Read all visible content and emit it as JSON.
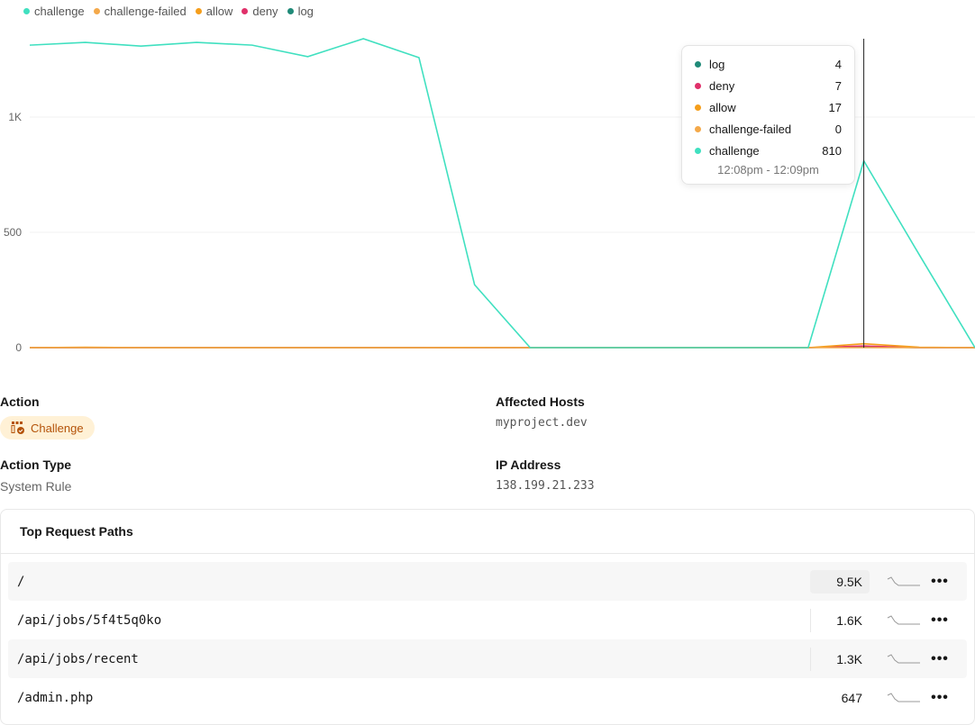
{
  "chart_data": {
    "type": "line",
    "legend": "top-left",
    "yticks": [
      "0",
      "500",
      "1K"
    ],
    "ylim": [
      0,
      1350
    ],
    "grid": true,
    "series": [
      {
        "name": "challenge",
        "color": "#40e0c0",
        "values": [
          1312,
          1324,
          1308,
          1324,
          1312,
          1262,
          1340,
          1258,
          273,
          0,
          0,
          0,
          0,
          0,
          0,
          810,
          402,
          0
        ]
      },
      {
        "name": "challenge-failed",
        "color": "#f4a94a",
        "values": [
          0,
          0,
          0,
          0,
          0,
          0,
          0,
          0,
          0,
          0,
          0,
          0,
          0,
          0,
          0,
          0,
          0,
          0
        ]
      },
      {
        "name": "allow",
        "color": "#f59e1b",
        "values": [
          0,
          2,
          0,
          0,
          0,
          0,
          0,
          0,
          1,
          0,
          0,
          0,
          0,
          0,
          0,
          17,
          2,
          0
        ]
      },
      {
        "name": "deny",
        "color": "#e0306a",
        "values": [
          0,
          0,
          0,
          0,
          0,
          0,
          0,
          0,
          0,
          0,
          0,
          0,
          0,
          0,
          0,
          7,
          0,
          0
        ]
      },
      {
        "name": "log",
        "color": "#1f8a78",
        "values": [
          0,
          0,
          0,
          0,
          0,
          0,
          0,
          0,
          0,
          0,
          0,
          0,
          0,
          0,
          0,
          4,
          0,
          0
        ]
      }
    ],
    "tooltip": {
      "rows": [
        {
          "name": "log",
          "value": "4",
          "color": "#1f8a78"
        },
        {
          "name": "deny",
          "value": "7",
          "color": "#e0306a"
        },
        {
          "name": "allow",
          "value": "17",
          "color": "#f59e1b"
        },
        {
          "name": "challenge-failed",
          "value": "0",
          "color": "#f4a94a"
        },
        {
          "name": "challenge",
          "value": "810",
          "color": "#40e0c0"
        }
      ],
      "range": "12:08pm - 12:09pm",
      "index": 15
    }
  },
  "details": {
    "action_label": "Action",
    "action_value": "Challenge",
    "hosts_label": "Affected Hosts",
    "hosts_value": "myproject.dev",
    "type_label": "Action Type",
    "type_value": "System Rule",
    "ip_label": "IP Address",
    "ip_value": "138.199.21.233"
  },
  "paths": {
    "title": "Top Request Paths",
    "rows": [
      {
        "path": "/",
        "count": "9.5K"
      },
      {
        "path": "/api/jobs/5f4t5q0ko",
        "count": "1.6K"
      },
      {
        "path": "/api/jobs/recent",
        "count": "1.3K"
      },
      {
        "path": "/admin.php",
        "count": "647"
      }
    ]
  }
}
